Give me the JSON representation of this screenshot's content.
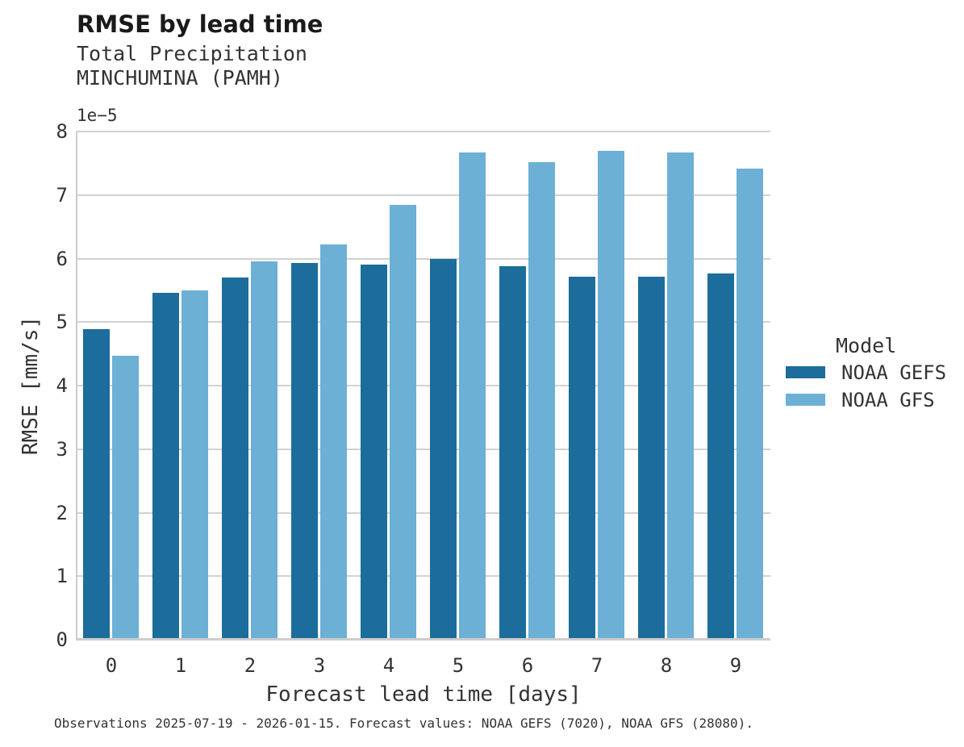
{
  "chart_data": {
    "type": "bar",
    "title": "RMSE by lead time",
    "subtitle": [
      "Total Precipitation",
      "MINCHUMINA (PAMH)"
    ],
    "subtitle_text": "Total Precipitation\nMINCHUMINA (PAMH)",
    "xlabel": "Forecast lead time [days]",
    "ylabel": "RMSE [mm/s]",
    "y_offset_label": "1e−5",
    "value_units": "1e-5 mm/s",
    "categories": [
      "0",
      "1",
      "2",
      "3",
      "4",
      "5",
      "6",
      "7",
      "8",
      "9"
    ],
    "series": [
      {
        "name": "NOAA GEFS",
        "color": "#1c6d9c",
        "values": [
          4.89,
          5.46,
          5.7,
          5.93,
          5.9,
          6.0,
          5.88,
          5.72,
          5.71,
          5.77
        ]
      },
      {
        "name": "NOAA GFS",
        "color": "#6cb0d6",
        "values": [
          4.47,
          5.5,
          5.95,
          6.22,
          6.85,
          7.67,
          7.52,
          7.69,
          7.67,
          7.42
        ]
      }
    ],
    "ylim": [
      0,
      8
    ],
    "yticks": [
      0,
      1,
      2,
      3,
      4,
      5,
      6,
      7,
      8
    ],
    "grid": true,
    "legend": {
      "title": "Model",
      "position": "right",
      "entries": [
        "NOAA GEFS",
        "NOAA GFS"
      ]
    },
    "caption": "Observations 2025-07-19 - 2026-01-15. Forecast values: NOAA GEFS (7020), NOAA GFS (28080)."
  },
  "colors": {
    "gefs_bar": "#1c6d9c",
    "gfs_bar": "#6cb0d6",
    "gridline": "#d2d2d2",
    "spine": "#cccccc",
    "text": "#333333",
    "title_text": "#1a1a1a",
    "background": "#ffffff"
  }
}
